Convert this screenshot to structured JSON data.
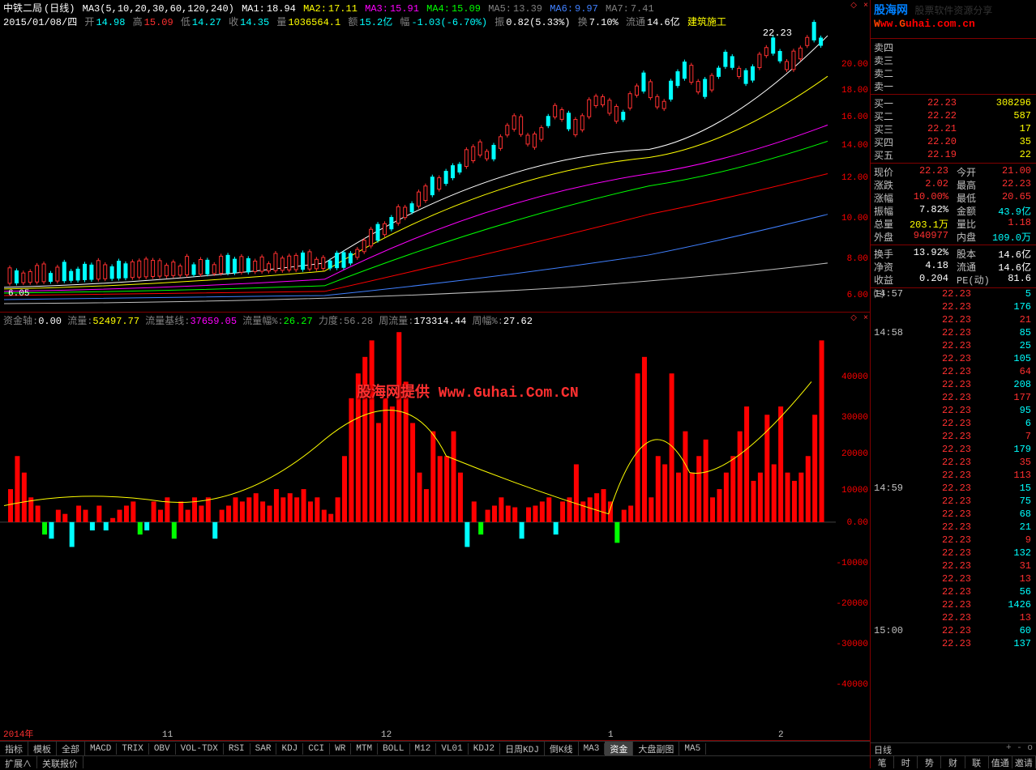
{
  "header": {
    "stock_name": "中铁二局",
    "period": "(日线)",
    "ma_config": "MA3(5,10,20,30,60,120,240)",
    "ma1": {
      "label": "MA1:",
      "value": "18.94",
      "color": "#ffffff"
    },
    "ma2": {
      "label": "MA2:",
      "value": "17.11",
      "color": "#ffff00"
    },
    "ma3": {
      "label": "MA3:",
      "value": "15.91",
      "color": "#ff00ff"
    },
    "ma4": {
      "label": "MA4:",
      "value": "15.09",
      "color": "#00ff00"
    },
    "ma5": {
      "label": "MA5:",
      "value": "13.39",
      "color": "#808080"
    },
    "ma6": {
      "label": "MA6:",
      "value": "9.97",
      "color": "#4080ff"
    },
    "ma7": {
      "label": "MA7:",
      "value": "7.41",
      "color": "#c0c0c0"
    },
    "date": "2015/01/08/四",
    "open_label": "开",
    "open": "14.98",
    "high_label": "高",
    "high": "15.09",
    "low_label": "低",
    "low": "14.27",
    "close_label": "收",
    "close": "14.35",
    "vol_label": "量",
    "vol": "1036564.1",
    "amount_label": "额",
    "amount": "15.2亿",
    "change_label": "幅",
    "change": "-1.03(-6.70%)",
    "amp_label": "振",
    "amp": "0.82(5.33%)",
    "turnover_label": "换",
    "turnover": "7.10%",
    "float_label": "流通",
    "float": "14.6亿",
    "sector": "建筑施工",
    "last_price": "22.23"
  },
  "chart": {
    "y_ticks": [
      "20.00",
      "18.00",
      "16.00",
      "14.00",
      "12.00",
      "10.00",
      "8.00",
      "6.00"
    ],
    "y_tick_positions": [
      60,
      92,
      125,
      160,
      200,
      250,
      300,
      345
    ],
    "low_label": "6.05",
    "candles": {
      "type": "candlestick",
      "up_color": "#ff3030",
      "up_fill": "#000000",
      "down_color": "#00ffff",
      "ma_colors": [
        "#ffffff",
        "#ffff00",
        "#ff00ff",
        "#00ff00",
        "#808080",
        "#4080ff",
        "#ff0000"
      ]
    }
  },
  "indicator": {
    "header": {
      "axis_label": "资金轴:",
      "axis": "0.00",
      "flow_label": "流量:",
      "flow": "52497.77",
      "base_label": "流量基线:",
      "base": "37659.05",
      "amp_label": "流量幅%:",
      "amp": "26.27",
      "strength_label": "力度:",
      "strength": "56.28",
      "week_flow_label": "周流量:",
      "week_flow": "173314.44",
      "week_amp_label": "周幅%:",
      "week_amp": "27.62"
    },
    "y_ticks": [
      "40000",
      "30000",
      "20000",
      "10000",
      "0.00",
      "-10000",
      "-20000",
      "-30000",
      "-40000"
    ],
    "y_tick_positions": [
      60,
      110,
      155,
      200,
      240,
      290,
      340,
      390,
      440
    ],
    "watermark": "股海网提供 Www.Guhai.Com.CN",
    "time_ticks": [
      {
        "label": "2014年",
        "pos": 4,
        "color": "#ff3030"
      },
      {
        "label": "11",
        "pos": 200,
        "color": "#c0c0c0"
      },
      {
        "label": "12",
        "pos": 470,
        "color": "#c0c0c0"
      },
      {
        "label": "1",
        "pos": 750,
        "color": "#c0c0c0"
      },
      {
        "label": "2",
        "pos": 960,
        "color": "#c0c0c0"
      }
    ],
    "bars": {
      "type": "bar",
      "up_color": "#ff0000",
      "down_color": "#00ffff",
      "neg_color": "#00ff00",
      "line_color": "#ffff00"
    }
  },
  "indicator_tabs": [
    "指标",
    "模板",
    "全部",
    "MACD",
    "TRIX",
    "OBV",
    "VOL-TDX",
    "RSI",
    "SAR",
    "KDJ",
    "CCI",
    "WR",
    "MTM",
    "BOLL",
    "M12",
    "VL01",
    "KDJ2",
    "日周KDJ",
    "倒K线",
    "MA3",
    "资金",
    "大盘副图",
    "MA5"
  ],
  "active_tab": "资金",
  "status_bar": [
    "扩展∧",
    "关联报价"
  ],
  "watermark": {
    "line1_a": "股海网",
    "line1_b": "股票软件资源分享",
    "line2": "Www.Guhai.com.cn"
  },
  "order_book": {
    "sells": [
      {
        "label": "卖四",
        "price": "",
        "vol": ""
      },
      {
        "label": "卖三",
        "price": "",
        "vol": ""
      },
      {
        "label": "卖二",
        "price": "",
        "vol": ""
      },
      {
        "label": "卖一",
        "price": "",
        "vol": ""
      }
    ],
    "buys": [
      {
        "label": "买一",
        "price": "22.23",
        "vol": "308296"
      },
      {
        "label": "买二",
        "price": "22.22",
        "vol": "587"
      },
      {
        "label": "买三",
        "price": "22.21",
        "vol": "17"
      },
      {
        "label": "买四",
        "price": "22.20",
        "vol": "35"
      },
      {
        "label": "买五",
        "price": "22.19",
        "vol": "22"
      }
    ]
  },
  "quote": {
    "rows": [
      [
        {
          "l": "现价",
          "v": "22.23",
          "c": "red"
        },
        {
          "l": "今开",
          "v": "21.00",
          "c": "red"
        }
      ],
      [
        {
          "l": "涨跌",
          "v": "2.02",
          "c": "red"
        },
        {
          "l": "最高",
          "v": "22.23",
          "c": "red"
        }
      ],
      [
        {
          "l": "涨幅",
          "v": "10.00%",
          "c": "red"
        },
        {
          "l": "最低",
          "v": "20.65",
          "c": "red"
        }
      ],
      [
        {
          "l": "振幅",
          "v": "7.82%",
          "c": "white"
        },
        {
          "l": "金额",
          "v": "43.9亿",
          "c": "cyan"
        }
      ],
      [
        {
          "l": "总量",
          "v": "203.1万",
          "c": "yellow"
        },
        {
          "l": "量比",
          "v": "1.18",
          "c": "red"
        }
      ],
      [
        {
          "l": "外盘",
          "v": "940977",
          "c": "red"
        },
        {
          "l": "内盘",
          "v": "109.0万",
          "c": "cyan"
        }
      ]
    ],
    "rows2": [
      [
        {
          "l": "换手",
          "v": "13.92%",
          "c": "white"
        },
        {
          "l": "股本",
          "v": "14.6亿",
          "c": "white"
        }
      ],
      [
        {
          "l": "净资",
          "v": "4.18",
          "c": "white"
        },
        {
          "l": "流通",
          "v": "14.6亿",
          "c": "white"
        }
      ],
      [
        {
          "l": "收益㈢",
          "v": "0.204",
          "c": "white"
        },
        {
          "l": "PE(动)",
          "v": "81.6",
          "c": "white"
        }
      ]
    ]
  },
  "ticks": [
    {
      "t": "14:57",
      "p": "22.23",
      "v": "5",
      "c": "cyan"
    },
    {
      "t": "",
      "p": "22.23",
      "v": "176",
      "c": "cyan"
    },
    {
      "t": "",
      "p": "22.23",
      "v": "21",
      "c": "red"
    },
    {
      "t": "14:58",
      "p": "22.23",
      "v": "85",
      "c": "cyan"
    },
    {
      "t": "",
      "p": "22.23",
      "v": "25",
      "c": "cyan"
    },
    {
      "t": "",
      "p": "22.23",
      "v": "105",
      "c": "cyan"
    },
    {
      "t": "",
      "p": "22.23",
      "v": "64",
      "c": "red"
    },
    {
      "t": "",
      "p": "22.23",
      "v": "208",
      "c": "cyan"
    },
    {
      "t": "",
      "p": "22.23",
      "v": "177",
      "c": "red"
    },
    {
      "t": "",
      "p": "22.23",
      "v": "95",
      "c": "cyan"
    },
    {
      "t": "",
      "p": "22.23",
      "v": "6",
      "c": "cyan"
    },
    {
      "t": "",
      "p": "22.23",
      "v": "7",
      "c": "red"
    },
    {
      "t": "",
      "p": "22.23",
      "v": "179",
      "c": "cyan"
    },
    {
      "t": "",
      "p": "22.23",
      "v": "35",
      "c": "red"
    },
    {
      "t": "",
      "p": "22.23",
      "v": "113",
      "c": "red"
    },
    {
      "t": "14:59",
      "p": "22.23",
      "v": "15",
      "c": "cyan"
    },
    {
      "t": "",
      "p": "22.23",
      "v": "75",
      "c": "cyan"
    },
    {
      "t": "",
      "p": "22.23",
      "v": "68",
      "c": "cyan"
    },
    {
      "t": "",
      "p": "22.23",
      "v": "21",
      "c": "cyan"
    },
    {
      "t": "",
      "p": "22.23",
      "v": "9",
      "c": "red"
    },
    {
      "t": "",
      "p": "22.23",
      "v": "132",
      "c": "cyan"
    },
    {
      "t": "",
      "p": "22.23",
      "v": "31",
      "c": "red"
    },
    {
      "t": "",
      "p": "22.23",
      "v": "13",
      "c": "red"
    },
    {
      "t": "",
      "p": "22.23",
      "v": "56",
      "c": "cyan"
    },
    {
      "t": "",
      "p": "22.23",
      "v": "1426",
      "c": "cyan"
    },
    {
      "t": "",
      "p": "22.23",
      "v": "13",
      "c": "red"
    },
    {
      "t": "15:00",
      "p": "22.23",
      "v": "60",
      "c": "cyan"
    },
    {
      "t": "",
      "p": "22.23",
      "v": "137",
      "c": "cyan"
    }
  ],
  "side_footer": {
    "period": "日线",
    "zoom": "+ - o",
    "tabs": [
      "笔",
      "时",
      "势",
      "财",
      "联",
      "值通",
      "邀请"
    ]
  }
}
